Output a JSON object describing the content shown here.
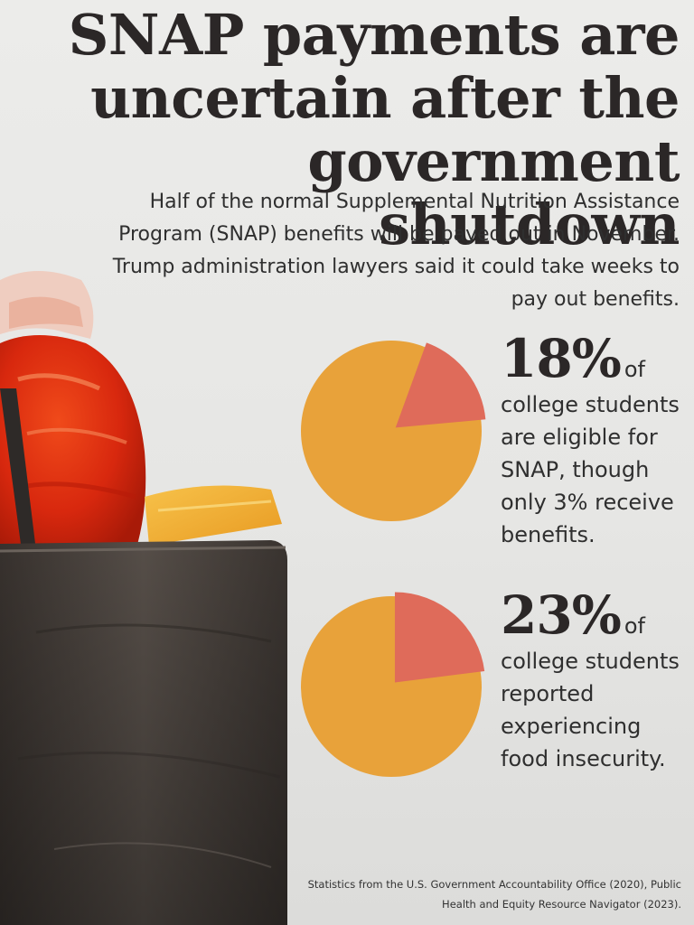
{
  "header": {
    "title_line1": "SNAP payments are",
    "title_line2": "uncertain after the",
    "title_line3": "government shutdown",
    "subtitle_line1": "Half of the normal Supplemental Nutrition Assistance",
    "subtitle_line2": "Program (SNAP) benefits will be payed out in November.",
    "subtitle_line3": "Trump administration lawyers said it could take weeks to",
    "subtitle_line4": "pay out benefits."
  },
  "stats": [
    {
      "value_label": "18%",
      "of_label": "of",
      "desc_lines": [
        "college students",
        "are eligible for",
        "SNAP, though",
        "only 3% receive",
        "benefits."
      ]
    },
    {
      "value_label": "23%",
      "of_label": "of",
      "desc_lines": [
        "college students",
        "reported",
        "experiencing",
        "food insecurity."
      ]
    }
  ],
  "source": {
    "line1": "Statistics from the U.S. Government Accountability Office (2020),  Public",
    "line2": "Health and Equity Resource Navigator (2023)."
  },
  "colors": {
    "pie_base": "#e8a23a",
    "pie_highlight": "#df6b5a",
    "title": "#2b2727"
  },
  "chart_data": [
    {
      "type": "pie",
      "slices": [
        {
          "label": "eligible for SNAP",
          "value": 18
        },
        {
          "label": "",
          "value": 82
        }
      ]
    },
    {
      "type": "pie",
      "slices": [
        {
          "label": "reported experiencing food insecurity",
          "value": 23
        },
        {
          "label": "",
          "value": 77
        }
      ]
    }
  ]
}
